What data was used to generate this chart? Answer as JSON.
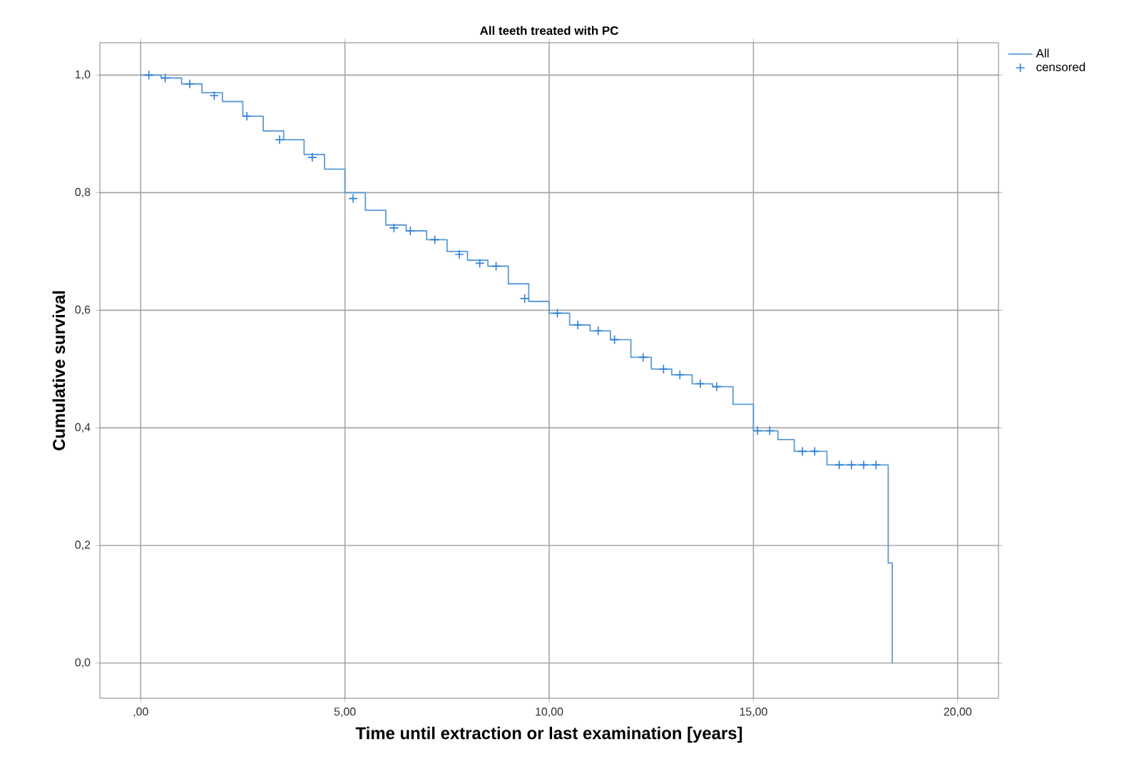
{
  "chart_data": {
    "type": "step",
    "title": "All teeth treated with PC",
    "xlabel": "Time until extraction or last examination [years]",
    "ylabel": "Cumulative survival",
    "xlim": [
      -1,
      21
    ],
    "ylim": [
      -0.06,
      1.055
    ],
    "xticks": [
      {
        "value": 0,
        "label": ",00"
      },
      {
        "value": 5,
        "label": "5,00"
      },
      {
        "value": 10,
        "label": "10,00"
      },
      {
        "value": 15,
        "label": "15,00"
      },
      {
        "value": 20,
        "label": "20,00"
      }
    ],
    "yticks": [
      {
        "value": 0,
        "label": "0,0"
      },
      {
        "value": 0.2,
        "label": "0,2"
      },
      {
        "value": 0.4,
        "label": "0,4"
      },
      {
        "value": 0.6,
        "label": "0,6"
      },
      {
        "value": 0.8,
        "label": "0,8"
      },
      {
        "value": 1,
        "label": "1,0"
      }
    ],
    "grid": true,
    "legend": "right",
    "series": [
      {
        "name": "All",
        "color": "#5b9bd5",
        "x": [
          0,
          0.5,
          1,
          1.5,
          2,
          2.5,
          3,
          3.5,
          4,
          4.5,
          5,
          5.5,
          6,
          6.5,
          7,
          7.5,
          8,
          8.5,
          9,
          9.5,
          10,
          10.5,
          11,
          11.5,
          12,
          12.5,
          13,
          13.5,
          14,
          14.5,
          15,
          15.6,
          16,
          16.8,
          18.3,
          18.4,
          18.4
        ],
        "values": [
          1.0,
          0.995,
          0.985,
          0.97,
          0.955,
          0.93,
          0.905,
          0.89,
          0.865,
          0.84,
          0.8,
          0.77,
          0.745,
          0.735,
          0.72,
          0.7,
          0.685,
          0.675,
          0.645,
          0.615,
          0.595,
          0.575,
          0.565,
          0.55,
          0.52,
          0.5,
          0.49,
          0.475,
          0.47,
          0.44,
          0.395,
          0.38,
          0.36,
          0.337,
          0.17,
          0.17,
          0.0
        ]
      },
      {
        "name": "censored",
        "type": "scatter",
        "marker": "cross",
        "color": "#2e7fd6",
        "x": [
          0.2,
          0.6,
          1.2,
          1.8,
          2.6,
          3.4,
          4.2,
          5.2,
          6.2,
          6.6,
          7.2,
          7.8,
          8.3,
          8.7,
          9.4,
          10.2,
          10.7,
          11.2,
          11.6,
          12.3,
          12.8,
          13.2,
          13.7,
          14.1,
          15.1,
          15.4,
          16.2,
          16.5,
          17.1,
          17.4,
          17.7,
          18.0
        ],
        "values": [
          1.0,
          0.995,
          0.985,
          0.965,
          0.93,
          0.89,
          0.86,
          0.79,
          0.74,
          0.735,
          0.72,
          0.695,
          0.68,
          0.675,
          0.62,
          0.595,
          0.575,
          0.565,
          0.55,
          0.52,
          0.5,
          0.49,
          0.475,
          0.47,
          0.395,
          0.395,
          0.36,
          0.36,
          0.337,
          0.337,
          0.337,
          0.337
        ]
      }
    ]
  }
}
